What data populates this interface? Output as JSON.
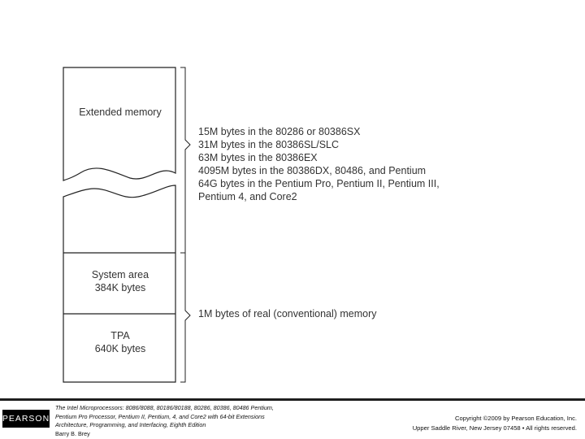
{
  "diagram": {
    "regions": {
      "extended": "Extended memory",
      "system_area": [
        "System area",
        "384K bytes"
      ],
      "tpa": [
        "TPA",
        "640K bytes"
      ]
    },
    "extended_annotations": [
      "15M bytes in the 80286 or 80386SX",
      "31M bytes in the 80386SL/SLC",
      "63M bytes in the 80386EX",
      "4095M bytes in the 80386DX, 80486, and Pentium",
      "64G bytes in the Pentium Pro, Pentium II, Pentium III,",
      "Pentium 4, and Core2"
    ],
    "real_memory_annotation": "1M bytes of real (conventional) memory"
  },
  "footer": {
    "logo": "PEARSON",
    "book_lines": [
      "The Intel Microprocessors: 8086/8088, 80186/80188, 80286, 80386, 80486 Pentium,",
      "Pentium Pro Processor, Pentium II, Pentium, 4, and Core2 with 64-bit Extensions",
      "Architecture, Programming, and Interfacing, Eighth Edition"
    ],
    "author": "Barry B. Brey",
    "copyright_lines": [
      "Copyright ©2009 by Pearson Education, Inc.",
      "Upper Saddle River, New Jersey 07458 • All rights reserved."
    ]
  }
}
